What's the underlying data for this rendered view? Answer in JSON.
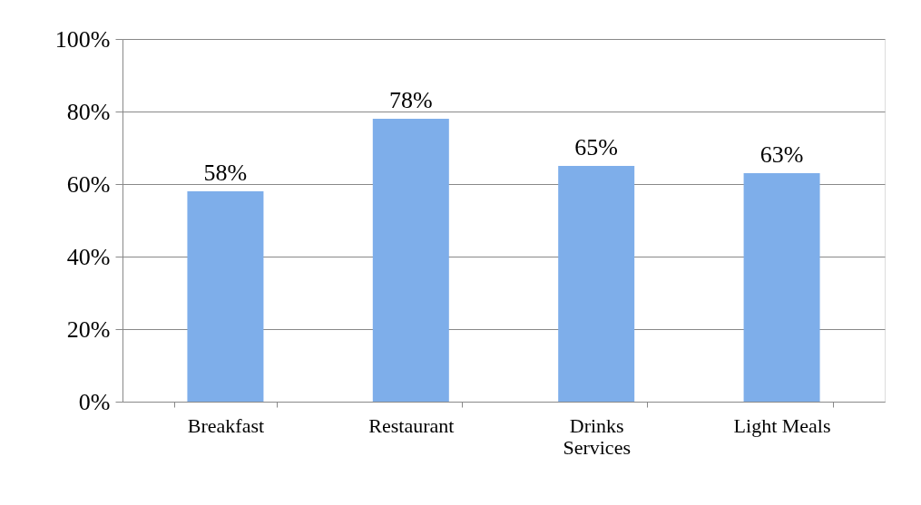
{
  "chart_data": {
    "type": "bar",
    "categories": [
      "Breakfast",
      "Restaurant",
      "Drinks Services",
      "Light Meals"
    ],
    "values": [
      58,
      78,
      65,
      63
    ],
    "color": "#7eaeea",
    "value_labels": [
      "58%",
      "78%",
      "65%",
      "63%"
    ],
    "ylim": [
      0,
      100
    ],
    "yticks": [
      {
        "value": 0,
        "label": "0%"
      },
      {
        "value": 20,
        "label": "20%"
      },
      {
        "value": 40,
        "label": "40%"
      },
      {
        "value": 60,
        "label": "60%"
      },
      {
        "value": 80,
        "label": "80%"
      },
      {
        "value": 100,
        "label": "100%"
      }
    ],
    "grid": "y"
  }
}
